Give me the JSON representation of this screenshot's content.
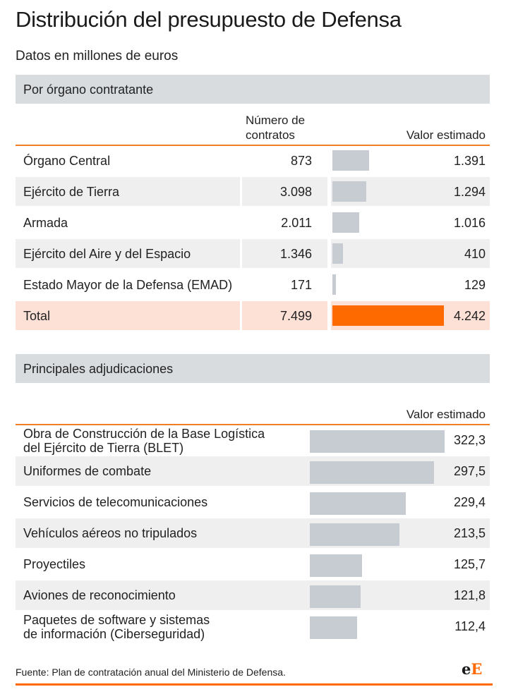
{
  "header": {
    "title": "Distribución del presupuesto de Defensa",
    "subtitle": "Datos en millones de euros"
  },
  "section1": {
    "heading": "Por órgano contratante",
    "col_contracts": "Número de\ncontratos",
    "col_contracts_line1": "Número de",
    "col_contracts_line2": "contratos",
    "col_value": "Valor estimado"
  },
  "section2": {
    "heading": "Principales adjudicaciones",
    "col_value": "Valor estimado"
  },
  "chart_data": [
    {
      "type": "table",
      "title": "Por órgano contratante",
      "columns": [
        "Número de contratos",
        "Valor estimado"
      ],
      "categories": [
        "Órgano Central",
        "Ejército de Tierra",
        "Armada",
        "Ejército del Aire y del Espacio",
        "Estado Mayor de la Defensa (EMAD)",
        "Total"
      ],
      "contracts_label": [
        "873",
        "3.098",
        "2.011",
        "1.346",
        "171",
        "7.499"
      ],
      "value_label": [
        "1.391",
        "1.294",
        "1.016",
        "410",
        "129",
        "4.242"
      ],
      "contracts": [
        873,
        3098,
        2011,
        1346,
        171,
        7499
      ],
      "values": [
        1391,
        1294,
        1016,
        410,
        129,
        4242
      ],
      "highlight": [
        false,
        false,
        false,
        false,
        false,
        true
      ],
      "colors": {
        "bar": "#c7ccd2",
        "highlight": "#ff6a00",
        "total_row": "#fde0d6"
      }
    },
    {
      "type": "bar",
      "title": "Principales adjudicaciones",
      "ylabel": "Valor estimado",
      "categories": [
        "Obra de Construcción de la Base Logística\ndel Ejército de Tierra (BLET)",
        "Uniformes de combate",
        "Servicios de telecomunicaciones",
        "Vehículos aéreos no tripulados",
        "Proyectiles",
        "Aviones de reconocimiento",
        "Paquetes de software y sistemas\nde información (Ciberseguridad)"
      ],
      "value_label": [
        "322,3",
        "297,5",
        "229,4",
        "213,5",
        "125,7",
        "121,8",
        "112,4"
      ],
      "values": [
        322.3,
        297.5,
        229.4,
        213.5,
        125.7,
        121.8,
        112.4
      ],
      "colors": {
        "bar": "#c7ccd2"
      }
    }
  ],
  "footer": {
    "source": "Fuente: Plan de contratación anual del Ministerio de Defensa.",
    "logo_e1": "e",
    "logo_e2": "E"
  }
}
